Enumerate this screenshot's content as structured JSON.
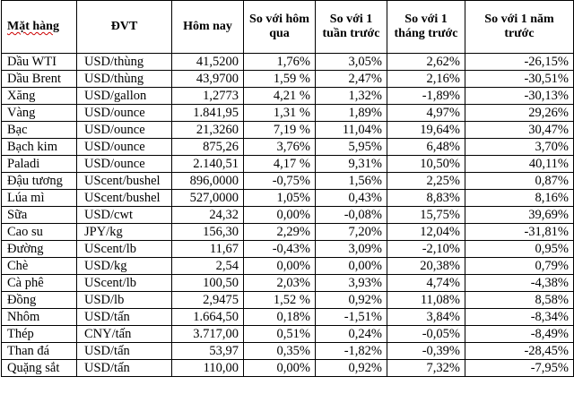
{
  "table": {
    "headers": [
      "Mặt hàng",
      "ĐVT",
      "Hôm nay",
      "So với hôm qua",
      "So với 1 tuần trước",
      "So với 1 tháng trước",
      "So với 1 năm trước"
    ],
    "rows": [
      [
        "Dầu WTI",
        "USD/thùng",
        "41,5200",
        "1,76%",
        "3,05%",
        "2,62%",
        "-26,15%"
      ],
      [
        "Dầu Brent",
        "USD/thùng",
        "43,9700",
        "1,59 %",
        "2,47%",
        "2,16%",
        "-30,51%"
      ],
      [
        "Xăng",
        "USD/gallon",
        "1,2773",
        "4,21 %",
        "1,32%",
        "-1,89%",
        "-30,13%"
      ],
      [
        "Vàng",
        "USD/ounce",
        "1.841,95",
        "1,31 %",
        "1,89%",
        "4,97%",
        "29,26%"
      ],
      [
        "Bạc",
        "USD/ounce",
        "21,3260",
        "7,19 %",
        "11,04%",
        "19,64%",
        "30,47%"
      ],
      [
        "Bạch kim",
        "USD/ounce",
        "875,26",
        "3,76%",
        "5,95%",
        "6,48%",
        "3,70%"
      ],
      [
        "Paladi",
        "USD/ounce",
        "2.140,51",
        "4,17 %",
        "9,31%",
        "10,50%",
        "40,11%"
      ],
      [
        "Đậu tương",
        "UScent/bushel",
        "896,0000",
        "-0,75%",
        "1,56%",
        "2,25%",
        "0,87%"
      ],
      [
        "Lúa mì",
        "UScent/bushel",
        "527,0000",
        "1,05%",
        "0,43%",
        "8,83%",
        "8,16%"
      ],
      [
        "Sữa",
        "USD/cwt",
        "24,32",
        "0,00%",
        "-0,08%",
        "15,75%",
        "39,69%"
      ],
      [
        "Cao su",
        "JPY/kg",
        "156,30",
        "2,29%",
        "7,20%",
        "12,04%",
        "-31,81%"
      ],
      [
        "Đường",
        "UScent/lb",
        "11,67",
        "-0,43%",
        "3,09%",
        "-2,10%",
        "0,95%"
      ],
      [
        "Chè",
        "USD/kg",
        "2,54",
        "0,00%",
        "0,00%",
        "20,38%",
        "0,79%"
      ],
      [
        "Cà phê",
        "UScent/lb",
        "100,50",
        "2,03%",
        "3,93%",
        "4,74%",
        "-4,38%"
      ],
      [
        "Đồng",
        "USD/lb",
        "2,9475",
        "1,52 %",
        "0,92%",
        "11,08%",
        "8,58%"
      ],
      [
        "Nhôm",
        "USD/tấn",
        "1.664,50",
        "0,18%",
        "-1,51%",
        "3,84%",
        "-8,34%"
      ],
      [
        "Thép",
        "CNY/tấn",
        "3.717,00",
        "0,51%",
        "0,24%",
        "-0,05%",
        "-8,49%"
      ],
      [
        "Than đá",
        "USD/tấn",
        "53,97",
        "0,35%",
        "-1,82%",
        "-0,39%",
        "-28,45%"
      ],
      [
        "Quặng sắt",
        "USD/tấn",
        "110,00",
        "0,00%",
        "0,92%",
        "7,32%",
        "-7,95%"
      ]
    ]
  }
}
